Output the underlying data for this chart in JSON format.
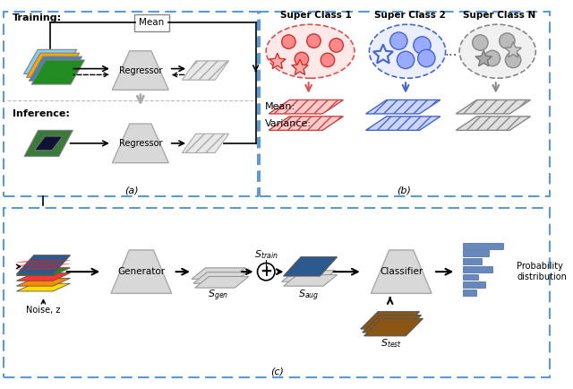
{
  "bg_color": "#ffffff",
  "dashed_border_color": "#5b9bd5",
  "label_a": "(a)",
  "label_b": "(b)",
  "label_c": "(c)"
}
